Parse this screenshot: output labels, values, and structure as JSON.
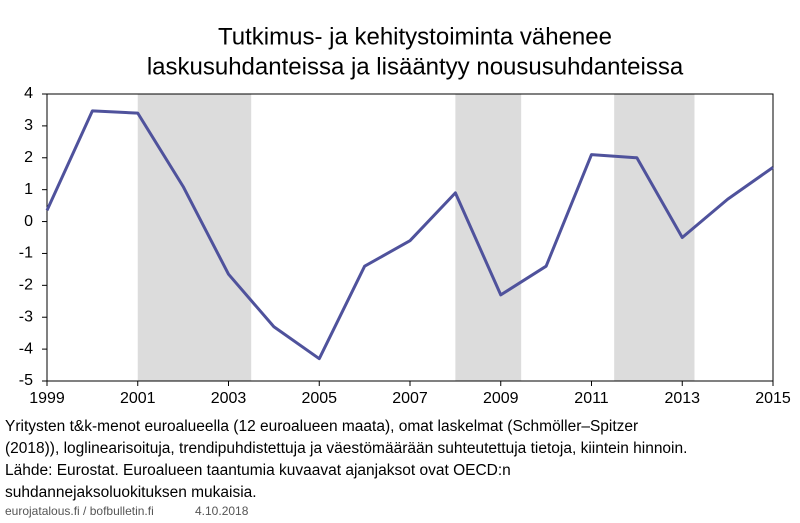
{
  "chart_data": {
    "type": "line",
    "title": [
      "Tutkimus- ja kehitystoiminta vähenee",
      "laskusuhdanteissa ja lisääntyy noususuhdanteissa"
    ],
    "x": [
      1999,
      2000,
      2001,
      2002,
      2003,
      2004,
      2005,
      2006,
      2007,
      2008,
      2009,
      2010,
      2011,
      2012,
      2013,
      2014,
      2015
    ],
    "series": [
      {
        "color": "#4f529c",
        "values": [
          0.35,
          3.47,
          3.4,
          1.1,
          -1.65,
          -3.3,
          -4.3,
          -1.4,
          -0.6,
          0.9,
          -2.3,
          -1.4,
          2.1,
          2.0,
          -0.5,
          0.7,
          1.7
        ]
      }
    ],
    "shaded_periods": [
      [
        2001,
        2003.5
      ],
      [
        2008,
        2009.45
      ],
      [
        2011.5,
        2013.27
      ]
    ],
    "shade_color": "#dcdcdc",
    "xlim": [
      1999,
      2015
    ],
    "xticks": [
      1999,
      2001,
      2003,
      2005,
      2007,
      2009,
      2011,
      2013,
      2015
    ],
    "ylim": [
      -5,
      4
    ],
    "yticks": [
      -5,
      -4,
      -3,
      -2,
      -1,
      0,
      1,
      2,
      3,
      4
    ],
    "grid": false,
    "note": [
      "Yritysten t&k-menot euroalueella (12 euroalueen maata), omat laskelmat (Schmöller–Spitzer",
      "(2018)), loglinearisoituja, trendipuhdistettuja ja väestömäärään suhteutettuja tietoja, kiintein hinnoin.",
      "Lähde: Eurostat. Euroalueen taantumia kuvaavat ajanjaksot ovat OECD:n",
      "suhdannejaksoluokituksen mukaisia."
    ],
    "source": "eurojatalous.fi / bofbulletin.fi",
    "date": "4.10.2018"
  }
}
